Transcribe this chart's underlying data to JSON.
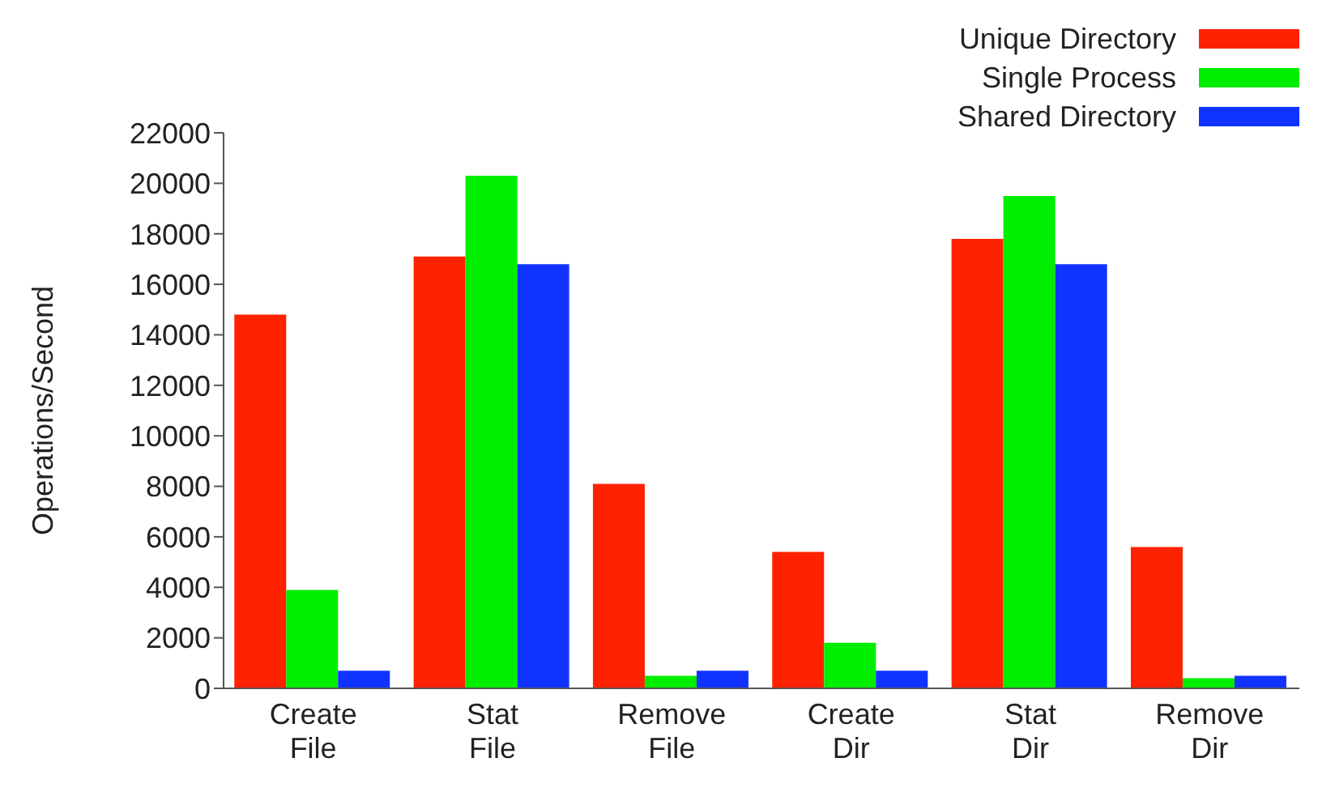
{
  "chart_data": {
    "type": "bar",
    "ylabel": "Operations/Second",
    "categories": [
      "Create File",
      "Stat File",
      "Remove File",
      "Create Dir",
      "Stat Dir",
      "Remove Dir"
    ],
    "series": [
      {
        "name": "Unique Directory",
        "color": "#ff2200",
        "values": [
          14800,
          17100,
          8100,
          5400,
          17800,
          5600
        ]
      },
      {
        "name": "Single Process",
        "color": "#00ee00",
        "values": [
          3900,
          20300,
          500,
          1800,
          19500,
          400
        ]
      },
      {
        "name": "Shared Directory",
        "color": "#1133ff",
        "values": [
          700,
          16800,
          700,
          700,
          16800,
          500
        ]
      }
    ],
    "ylim": [
      0,
      22000
    ],
    "yticks": [
      0,
      2000,
      4000,
      6000,
      8000,
      10000,
      12000,
      14000,
      16000,
      18000,
      20000,
      22000
    ],
    "grid": false,
    "legend": "top right"
  }
}
